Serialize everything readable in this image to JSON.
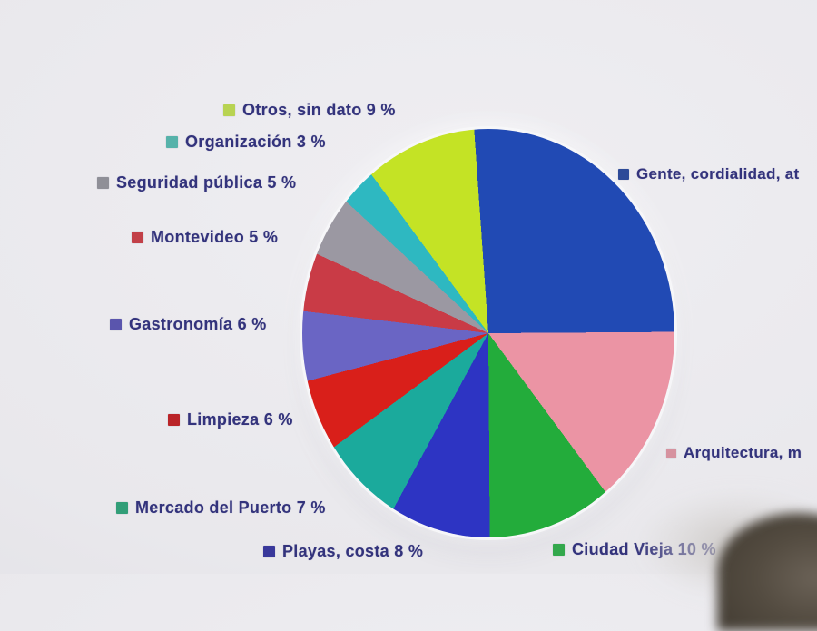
{
  "chart_data": {
    "type": "pie",
    "title": "",
    "legend_position": "around",
    "start_angle_deg": -4,
    "slices": [
      {
        "label": "Gente, cordialidad, at",
        "value": 26,
        "color": "#1f4ab8",
        "swatch": "#2c4a9b"
      },
      {
        "label": "Arquitectura, m",
        "value": 15,
        "color": "#ee93a4",
        "swatch": "#d8919f"
      },
      {
        "label": "Ciudad Vieja 10 %",
        "value": 10,
        "color": "#1fae38",
        "swatch": "#2fa94a"
      },
      {
        "label": "Playas, costa 8 %",
        "value": 8,
        "color": "#2c34c9",
        "swatch": "#39389f"
      },
      {
        "label": "Mercado del Puerto 7 %",
        "value": 7,
        "color": "#16ab9d",
        "swatch": "#2f9f78"
      },
      {
        "label": "Limpieza 6 %",
        "value": 6,
        "color": "#df1d18",
        "swatch": "#bf2327"
      },
      {
        "label": "Gastronomía 6 %",
        "value": 6,
        "color": "#6a65c8",
        "swatch": "#5a55b0"
      },
      {
        "label": "Montevideo 5 %",
        "value": 5,
        "color": "#ce3a45",
        "swatch": "#c63f47"
      },
      {
        "label": "Seguridad pública 5 %",
        "value": 5,
        "color": "#9b98a2",
        "swatch": "#8f8f97"
      },
      {
        "label": "Organización 3 %",
        "value": 3,
        "color": "#29b9c3",
        "swatch": "#53b3ab"
      },
      {
        "label": "Otros, sin dato 9 %",
        "value": 9,
        "color": "#c4e41e",
        "swatch": "#b7d44d"
      }
    ],
    "text_color": "#33337f"
  }
}
